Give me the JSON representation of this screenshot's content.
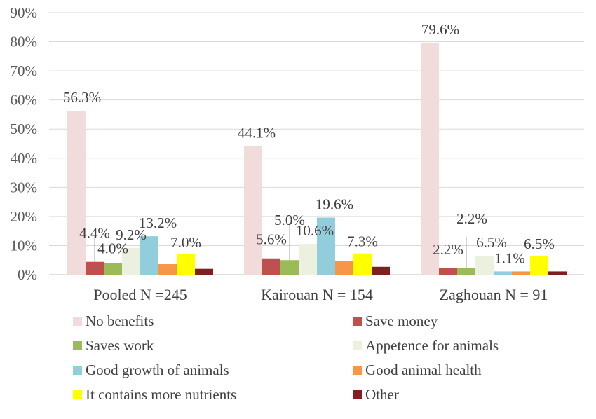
{
  "chart_data": {
    "type": "bar",
    "categories": [
      "Pooled N =245",
      "Kairouan N = 154",
      "Zaghouan N = 91"
    ],
    "ylim": [
      0,
      90
    ],
    "yticks": [
      "0%",
      "10%",
      "20%",
      "30%",
      "40%",
      "50%",
      "60%",
      "70%",
      "80%",
      "90%"
    ],
    "grid": true,
    "legend_position": "bottom",
    "series": [
      {
        "name": "No benefits",
        "color": "#f2dcdb",
        "values": [
          56.3,
          44.1,
          79.6
        ],
        "labels": [
          "56.3%",
          "44.1%",
          "79.6%"
        ]
      },
      {
        "name": "Save money",
        "color": "#c0504d",
        "values": [
          4.4,
          5.6,
          2.2
        ],
        "labels": [
          "4.4%",
          "5.6%",
          "2.2%"
        ]
      },
      {
        "name": "Saves work",
        "color": "#9bbb59",
        "values": [
          4.0,
          5.0,
          2.2
        ],
        "labels": [
          "4.0%",
          "5.0%",
          "2.2%"
        ]
      },
      {
        "name": "Appetence for animals",
        "color": "#ebf1de",
        "values": [
          9.2,
          10.6,
          6.5
        ],
        "labels": [
          "9.2%",
          "10.6%",
          "6.5%"
        ]
      },
      {
        "name": "Good growth of animals",
        "color": "#92cddc",
        "values": [
          13.2,
          19.6,
          1.1
        ],
        "labels": [
          "13.2%",
          "19.6%",
          "1.1%"
        ]
      },
      {
        "name": "Good animal health",
        "color": "#f79646",
        "values": [
          3.6,
          4.8,
          1.1
        ],
        "labels": [
          "",
          "",
          ""
        ]
      },
      {
        "name": "It contains more nutrients",
        "color": "#ffff00",
        "values": [
          7.0,
          7.3,
          6.5
        ],
        "labels": [
          "7.0%",
          "7.3%",
          "6.5%"
        ]
      },
      {
        "name": "Other",
        "color": "#7f1f1f",
        "values": [
          2.0,
          2.7,
          1.1
        ],
        "labels": [
          "",
          "",
          ""
        ]
      }
    ]
  }
}
